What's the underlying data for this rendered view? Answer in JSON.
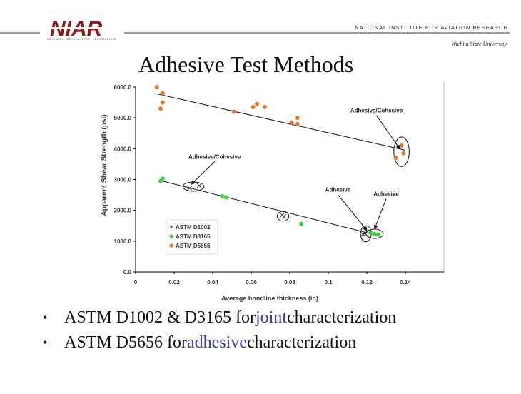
{
  "header": {
    "logo_text": "NIAR",
    "logo_tagline": "RESEARCH · DESIGN · TEST · CERTIFICATION",
    "institute": "NATIONAL INSTITUTE FOR AVIATION RESEARCH",
    "university": "Wichita State University",
    "brand_color": "#8b1a1a"
  },
  "title": "Adhesive Test Methods",
  "chart_data": {
    "type": "scatter",
    "title": "",
    "xlabel": "Average bondline thickness (in)",
    "ylabel": "Apparent Shear Strength (psi)",
    "xlim": [
      0,
      0.16
    ],
    "ylim": [
      0,
      6000
    ],
    "x_ticks": [
      "0",
      "0.02",
      "0.04",
      "0.06",
      "0.08",
      "0.1",
      "0.12",
      "0.14"
    ],
    "y_ticks": [
      "0.0",
      "1000.0",
      "2000.0",
      "3000.0",
      "4000.0",
      "5000.0",
      "6000.0"
    ],
    "legend_position": "bottom-left",
    "series": [
      {
        "name": "ASTM D1002",
        "marker": "x",
        "color": "#333333",
        "points": [
          [
            0.028,
            2720
          ],
          [
            0.033,
            2800
          ],
          [
            0.077,
            1800
          ],
          [
            0.076,
            1840
          ],
          [
            0.119,
            1260
          ],
          [
            0.118,
            1220
          ]
        ]
      },
      {
        "name": "ASTM D3165",
        "marker": "diamond",
        "color": "#44cc44",
        "points": [
          [
            0.013,
            2950
          ],
          [
            0.014,
            3030
          ],
          [
            0.045,
            2460
          ],
          [
            0.047,
            2420
          ],
          [
            0.086,
            1560
          ],
          [
            0.122,
            1270
          ],
          [
            0.124,
            1230
          ],
          [
            0.126,
            1210
          ]
        ]
      },
      {
        "name": "ASTM D5656",
        "marker": "circle",
        "color": "#e07830",
        "points": [
          [
            0.011,
            6000
          ],
          [
            0.014,
            5800
          ],
          [
            0.014,
            5500
          ],
          [
            0.013,
            5300
          ],
          [
            0.051,
            5200
          ],
          [
            0.061,
            5350
          ],
          [
            0.063,
            5450
          ],
          [
            0.067,
            5350
          ],
          [
            0.081,
            4850
          ],
          [
            0.084,
            4800
          ],
          [
            0.084,
            5000
          ],
          [
            0.135,
            3700
          ],
          [
            0.138,
            4100
          ],
          [
            0.139,
            3850
          ]
        ]
      }
    ],
    "trendlines": [
      {
        "series": "ASTM D5656",
        "from": [
          0.011,
          5780
        ],
        "to": [
          0.14,
          3950
        ]
      },
      {
        "series": "ASTM D1002/D3165",
        "from": [
          0.012,
          2980
        ],
        "to": [
          0.126,
          1180
        ]
      }
    ],
    "annotations": [
      {
        "text": "Adhesive/Cohesive",
        "anchor": [
          0.125,
          5080
        ],
        "target": [
          0.137,
          4000
        ]
      },
      {
        "text": "Adhesive/Cohesive",
        "anchor": [
          0.041,
          3580
        ],
        "target": [
          0.029,
          2850
        ]
      },
      {
        "text": "Adhesive",
        "anchor": [
          0.105,
          2510
        ],
        "target": [
          0.12,
          1350
        ]
      },
      {
        "text": "Adhesive",
        "anchor": [
          0.13,
          2370
        ],
        "target": [
          0.124,
          1400
        ]
      }
    ],
    "ellipses": [
      {
        "center": [
          0.03,
          2770
        ],
        "rx": 0.0055,
        "ry": 150
      },
      {
        "center": [
          0.0765,
          1810
        ],
        "rx": 0.003,
        "ry": 160
      },
      {
        "center": [
          0.1195,
          1240
        ],
        "rx": 0.0028,
        "ry": 260
      },
      {
        "center": [
          0.124,
          1240
        ],
        "rx": 0.0045,
        "ry": 150
      },
      {
        "center": [
          0.138,
          3900
        ],
        "rx": 0.004,
        "ry": 480
      }
    ]
  },
  "bullets": [
    {
      "prefix": "ASTM D1002 & D3165 for ",
      "highlight": "joint",
      "suffix": " characterization"
    },
    {
      "prefix": "ASTM D5656 for ",
      "highlight": "adhesive",
      "suffix": " characterization"
    }
  ],
  "bullet_symbol": "•"
}
